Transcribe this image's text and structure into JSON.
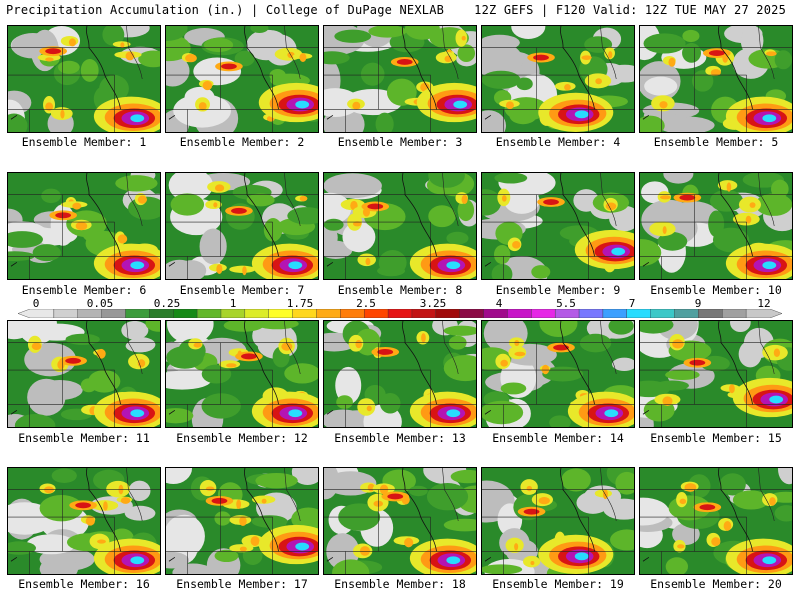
{
  "header": {
    "left": "Precipitation Accumulation (in.) | College of DuPage NEXLAB",
    "right": "12Z GEFS | F120 Valid: 12Z TUE MAY 27 2025"
  },
  "colorbar": {
    "labels": [
      "0",
      "0.05",
      "0.25",
      "1",
      "1.75",
      "2.5",
      "3.25",
      "4",
      "5.5",
      "7",
      "9",
      "12"
    ],
    "colors": [
      "#e8e8e8",
      "#d0d0d0",
      "#b4b4b4",
      "#989898",
      "#3c9c3c",
      "#2a7d2a",
      "#168a16",
      "#64b82a",
      "#a8d42a",
      "#dcec28",
      "#ffff28",
      "#ffd71e",
      "#ffaa14",
      "#ff7d0a",
      "#ff4600",
      "#e61414",
      "#c31414",
      "#a00a0a",
      "#8c0a46",
      "#a00a8c",
      "#c814c8",
      "#e628e6",
      "#b45ae6",
      "#7878ff",
      "#3ca0ff",
      "#28dcff",
      "#3cc8c8",
      "#50a0a0",
      "#787878",
      "#a0a0a0",
      "#c8c8c8"
    ]
  },
  "members": [
    {
      "label": "Ensemble Member: 1",
      "hot": "s"
    },
    {
      "label": "Ensemble Member: 2",
      "hot": "e"
    },
    {
      "label": "Ensemble Member: 3",
      "hot": "e"
    },
    {
      "label": "Ensemble Member: 4",
      "hot": "c"
    },
    {
      "label": "Ensemble Member: 5",
      "hot": "s"
    },
    {
      "label": "Ensemble Member: 6",
      "hot": "s"
    },
    {
      "label": "Ensemble Member: 7",
      "hot": "s"
    },
    {
      "label": "Ensemble Member: 8",
      "hot": "s"
    },
    {
      "label": "Ensemble Member: 9",
      "hot": "e"
    },
    {
      "label": "Ensemble Member: 10",
      "hot": "s"
    },
    {
      "label": "Ensemble Member: 11",
      "hot": "s"
    },
    {
      "label": "Ensemble Member: 12",
      "hot": "s"
    },
    {
      "label": "Ensemble Member: 13",
      "hot": "s"
    },
    {
      "label": "Ensemble Member: 14",
      "hot": "s"
    },
    {
      "label": "Ensemble Member: 15",
      "hot": "e"
    },
    {
      "label": "Ensemble Member: 16",
      "hot": "s"
    },
    {
      "label": "Ensemble Member: 17",
      "hot": "e"
    },
    {
      "label": "Ensemble Member: 18",
      "hot": "s"
    },
    {
      "label": "Ensemble Member: 19",
      "hot": "c"
    },
    {
      "label": "Ensemble Member: 20",
      "hot": "s"
    }
  ]
}
